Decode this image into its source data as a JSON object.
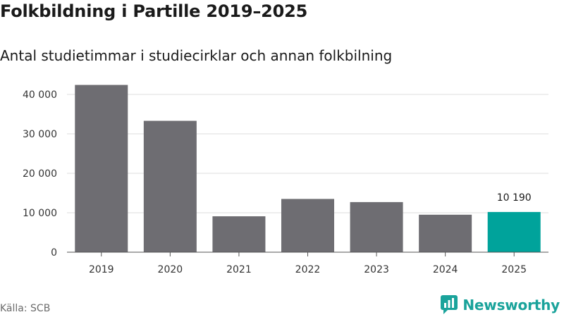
{
  "title": "Folkbildning i Partille 2019–2025",
  "subtitle": "Antal studietimmar i studiecirklar och annan folkbilning",
  "source": "Källa: SCB",
  "brand": {
    "name": "Newsworthy",
    "icon": "newsworthy-logo-icon",
    "color": "#1aa39b"
  },
  "chart_data": {
    "type": "bar",
    "categories": [
      "2019",
      "2020",
      "2021",
      "2022",
      "2023",
      "2024",
      "2025"
    ],
    "values": [
      42400,
      33300,
      9100,
      13500,
      12700,
      9500,
      10190
    ],
    "highlight_index": 6,
    "annotations": [
      {
        "category": "2025",
        "text": "10 190"
      }
    ],
    "ylim": [
      0,
      45000
    ],
    "yticks": [
      0,
      10000,
      20000,
      30000,
      40000
    ],
    "ytick_labels": [
      "0",
      "10 000",
      "20 000",
      "30 000",
      "40 000"
    ],
    "grid": true,
    "colors": {
      "bar": "#6e6d72",
      "highlight": "#00a39b",
      "grid": "#dcdcdc",
      "axis": "#555555",
      "tick_text": "#333333"
    }
  }
}
